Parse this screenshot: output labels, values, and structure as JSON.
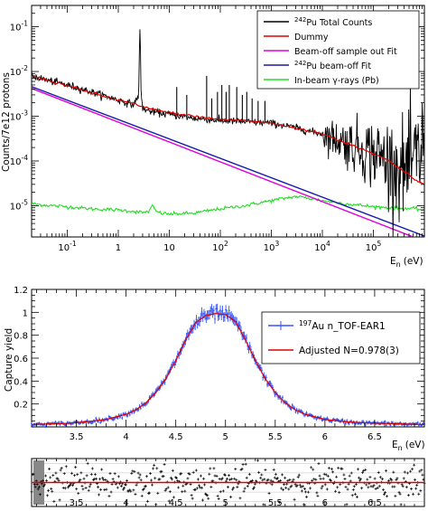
{
  "chart_data": [
    {
      "type": "line",
      "panel": "top",
      "ylabel": "Counts/7e12 protons",
      "xlabel_main": "E",
      "xlabel_sub": "n",
      "xlabel_unit": "(eV)",
      "xscale": "log",
      "yscale": "log",
      "xlim": [
        0.02,
        1000000
      ],
      "ylim": [
        2e-06,
        0.3
      ],
      "x_ticks": [
        {
          "pre": "10",
          "exp": "-1",
          "v": 0.1
        },
        {
          "pre": "1",
          "exp": "",
          "v": 1
        },
        {
          "pre": "10",
          "exp": "",
          "v": 10
        },
        {
          "pre": "10",
          "exp": "2",
          "v": 100
        },
        {
          "pre": "10",
          "exp": "3",
          "v": 1000
        },
        {
          "pre": "10",
          "exp": "4",
          "v": 10000
        },
        {
          "pre": "10",
          "exp": "5",
          "v": 100000
        }
      ],
      "y_ticks": [
        {
          "pre": "10",
          "exp": "-1",
          "v": 0.1
        },
        {
          "pre": "10",
          "exp": "-2",
          "v": 0.01
        },
        {
          "pre": "10",
          "exp": "-3",
          "v": 0.001
        },
        {
          "pre": "10",
          "exp": "-4",
          "v": 0.0001
        },
        {
          "pre": "10",
          "exp": "-5",
          "v": 1e-05
        }
      ],
      "legend_position": "top-right",
      "series": [
        {
          "name_sup": "242",
          "name_rest": "Pu Total Counts",
          "color": "#000000",
          "x": [
            0.02,
            0.05,
            0.1,
            0.3,
            1,
            2,
            2.5,
            2.67,
            2.8,
            3,
            4,
            10,
            30,
            100,
            300,
            1000,
            3000,
            10000,
            30000,
            100000,
            200000,
            400000,
            700000,
            1000000
          ],
          "y": [
            0.008,
            0.006,
            0.005,
            0.0035,
            0.0023,
            0.0018,
            0.003,
            0.13,
            0.003,
            0.0015,
            0.0013,
            0.0011,
            0.0009,
            0.0008,
            0.00075,
            0.0007,
            0.00055,
            0.0004,
            0.00025,
            0.00015,
            0.0001,
            6e-05,
            0.0001,
            0.0003
          ],
          "peaks": [
            {
              "x": 2.67,
              "y": 0.13
            },
            {
              "x": 14,
              "y": 0.0045
            },
            {
              "x": 22,
              "y": 0.003
            },
            {
              "x": 54,
              "y": 0.008
            },
            {
              "x": 68,
              "y": 0.0025
            },
            {
              "x": 88,
              "y": 0.0035
            },
            {
              "x": 107,
              "y": 0.005
            },
            {
              "x": 130,
              "y": 0.0035
            },
            {
              "x": 150,
              "y": 0.005
            },
            {
              "x": 210,
              "y": 0.0045
            },
            {
              "x": 270,
              "y": 0.003
            },
            {
              "x": 330,
              "y": 0.0035
            },
            {
              "x": 420,
              "y": 0.0025
            },
            {
              "x": 550,
              "y": 0.0022
            },
            {
              "x": 750,
              "y": 0.0022
            }
          ]
        },
        {
          "name_sup": "",
          "name_rest": "Dummy",
          "color": "#e00000",
          "x": [
            0.02,
            0.05,
            0.1,
            0.3,
            1,
            2,
            3,
            5,
            10,
            30,
            100,
            300,
            1000,
            3000,
            10000,
            30000,
            100000,
            200000,
            400000,
            700000,
            1000000
          ],
          "y": [
            0.008,
            0.006,
            0.0048,
            0.0033,
            0.0023,
            0.0019,
            0.0016,
            0.0014,
            0.0012,
            0.001,
            0.00085,
            0.0008,
            0.0007,
            0.00055,
            0.0004,
            0.00025,
            0.00015,
            0.0001,
            6e-05,
            3.5e-05,
            3e-05
          ]
        },
        {
          "name_sup": "",
          "name_rest": "Beam-off sample out Fit",
          "color": "#dd00dd",
          "x": [
            0.02,
            1000000
          ],
          "y": [
            0.0042,
            1.6e-06
          ]
        },
        {
          "name_sup": "242",
          "name_rest": "Pu beam-off Fit",
          "color": "#1a1aa8",
          "x": [
            0.02,
            1000000
          ],
          "y": [
            0.0046,
            2.1e-06
          ]
        },
        {
          "name_sup": "",
          "name_rest": "In-beam γ-rays (Pb)",
          "color": "#22dd22",
          "x": [
            0.02,
            0.05,
            0.1,
            0.3,
            1,
            2,
            3,
            4,
            4.7,
            5.5,
            7,
            10,
            30,
            100,
            300,
            1000,
            2000,
            3000,
            5000,
            10000,
            30000,
            100000,
            300000,
            700000,
            1000000
          ],
          "y": [
            1.1e-05,
            1e-05,
            9.5e-06,
            8.5e-06,
            8e-06,
            7.5e-06,
            7e-06,
            7.5e-06,
            1e-05,
            7.5e-06,
            6.8e-06,
            6.5e-06,
            6.8e-06,
            8.5e-06,
            1e-05,
            1.3e-05,
            1.5e-05,
            1.6e-05,
            1.5e-05,
            1.3e-05,
            1.1e-05,
            9.5e-06,
            8.8e-06,
            8.5e-06,
            8e-06
          ]
        }
      ]
    },
    {
      "type": "scatter",
      "panel": "middle",
      "ylabel": "Capture yield",
      "xlabel_main": "E",
      "xlabel_sub": "n",
      "xlabel_unit": "(eV)",
      "xlim": [
        3.05,
        7.0
      ],
      "ylim": [
        0.0,
        1.2
      ],
      "x_ticks": [
        3.5,
        4,
        4.5,
        5,
        5.5,
        6,
        6.5
      ],
      "y_ticks": [
        0.2,
        0.4,
        0.6,
        0.8,
        1.0,
        1.2
      ],
      "y_tick_labels": [
        "0.2",
        "0.4",
        "0.6",
        "0.8",
        "1",
        "1.2"
      ],
      "legend_position": "top-right",
      "series": [
        {
          "name_sup": "197",
          "name_rest": "Au n_TOF-EAR1",
          "color": "#3355ff",
          "x": [
            3.05,
            3.2,
            3.4,
            3.6,
            3.8,
            4.0,
            4.1,
            4.2,
            4.3,
            4.4,
            4.5,
            4.6,
            4.7,
            4.8,
            4.9,
            5.0,
            5.1,
            5.2,
            5.3,
            5.4,
            5.5,
            5.6,
            5.7,
            5.8,
            6.0,
            6.2,
            6.4,
            6.6,
            6.8,
            7.0
          ],
          "y": [
            0.02,
            0.025,
            0.03,
            0.045,
            0.065,
            0.11,
            0.15,
            0.21,
            0.3,
            0.42,
            0.58,
            0.76,
            0.91,
            0.97,
            0.99,
            0.98,
            0.92,
            0.76,
            0.58,
            0.42,
            0.3,
            0.21,
            0.15,
            0.11,
            0.065,
            0.045,
            0.035,
            0.03,
            0.025,
            0.02
          ]
        },
        {
          "name_sup": "",
          "name_rest": "Adjusted N=0.978(3)",
          "color": "#e00000",
          "x": [
            3.05,
            3.2,
            3.4,
            3.6,
            3.8,
            4.0,
            4.1,
            4.2,
            4.3,
            4.4,
            4.5,
            4.6,
            4.7,
            4.8,
            4.9,
            5.0,
            5.1,
            5.2,
            5.3,
            5.4,
            5.5,
            5.6,
            5.7,
            5.8,
            6.0,
            6.2,
            6.4,
            6.6,
            6.8,
            7.0
          ],
          "y": [
            0.02,
            0.025,
            0.03,
            0.045,
            0.065,
            0.11,
            0.15,
            0.21,
            0.3,
            0.42,
            0.58,
            0.76,
            0.91,
            0.97,
            0.99,
            0.98,
            0.92,
            0.76,
            0.58,
            0.42,
            0.3,
            0.21,
            0.15,
            0.11,
            0.065,
            0.045,
            0.035,
            0.03,
            0.025,
            0.02
          ]
        }
      ]
    },
    {
      "type": "scatter",
      "panel": "bottom",
      "xlim": [
        3.05,
        7.0
      ],
      "ylim": [
        -5,
        5
      ],
      "x_ticks": [
        3.5,
        4,
        4.5,
        5,
        5.5,
        6,
        6.5
      ],
      "reference_line": {
        "y": 0,
        "color": "#e00000"
      },
      "series": [
        {
          "name": "",
          "color": "#000000",
          "spread": 2.5
        }
      ]
    }
  ]
}
